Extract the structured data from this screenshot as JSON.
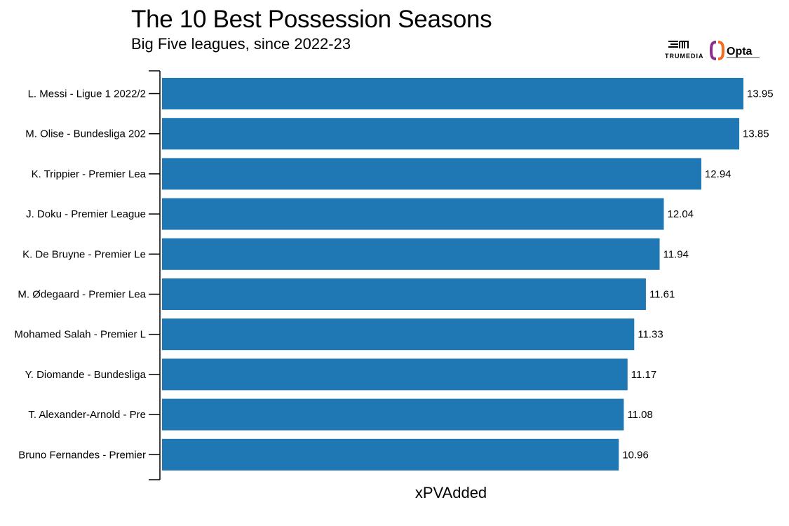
{
  "header": {
    "title": "The 10 Best Possession Seasons",
    "subtitle": "Big Five leagues, since 2022-23"
  },
  "logos": {
    "trumedia": "TRUMEDIA",
    "opta": "Opta"
  },
  "colors": {
    "bar": "#1f77b4",
    "axis": "#000000",
    "text": "#000000",
    "opta_orange": "#f26b21",
    "opta_purple": "#8e2b8f"
  },
  "chart_data": {
    "type": "bar",
    "orientation": "horizontal",
    "categories": [
      "L. Messi - Ligue 1 2022/2",
      "M. Olise - Bundesliga 202",
      "K. Trippier - Premier Lea",
      "J. Doku - Premier League",
      "K. De Bruyne - Premier Le",
      "M. Ødegaard - Premier Lea",
      "Mohamed Salah - Premier L",
      "Y. Diomande - Bundesliga",
      "T. Alexander-Arnold - Pre",
      "Bruno Fernandes - Premier"
    ],
    "values": [
      13.95,
      13.85,
      12.94,
      12.04,
      11.94,
      11.61,
      11.33,
      11.17,
      11.08,
      10.96
    ],
    "value_labels": [
      "13.95",
      "13.85",
      "12.94",
      "12.04",
      "11.94",
      "11.61",
      "11.33",
      "11.17",
      "11.08",
      "10.96"
    ],
    "title": "The 10 Best Possession Seasons",
    "subtitle": "Big Five leagues, since 2022-23",
    "xlabel": "xPVAdded",
    "ylabel": "",
    "xlim": [
      0,
      13.95
    ],
    "grid": false,
    "legend": "none"
  }
}
